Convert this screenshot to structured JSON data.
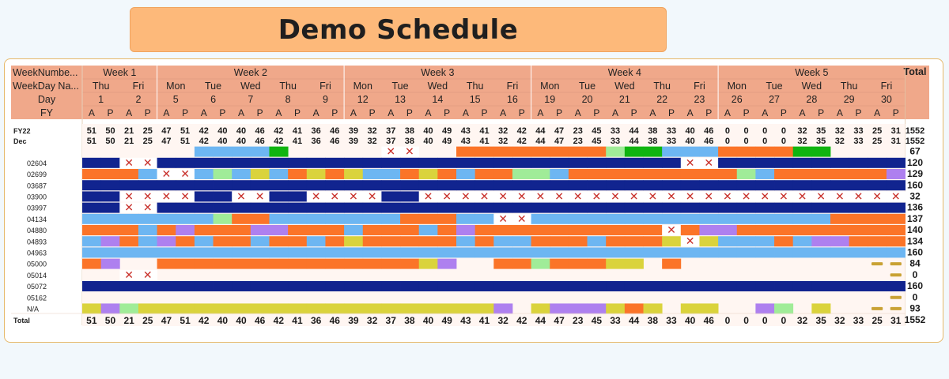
{
  "title": "Demo Schedule",
  "header_labels": {
    "week": "WeekNumbe...",
    "weekday": "WeekDay Na...",
    "day": "Day",
    "fy": "FY",
    "total": "Total"
  },
  "weeks": [
    "Week 1",
    "Week 2",
    "Week 3",
    "Week 4",
    "Week 5"
  ],
  "colors": {
    "header_bg": "#f0a88a",
    "navy": "#11248f",
    "orange": "#fb7428",
    "lightblue": "#6db6f2",
    "green": "#10b410",
    "lightgreen": "#a0ec98",
    "purple": "#ae80ef",
    "yellow": "#dad33c",
    "dash": "#c9a234",
    "x_mark": "#c8302a"
  },
  "chart_data": {
    "type": "heatmap",
    "title": "Demo Schedule",
    "days": [
      {
        "week": "Week 1",
        "weekday": "Thu",
        "day": "1"
      },
      {
        "week": "Week 1",
        "weekday": "Fri",
        "day": "2"
      },
      {
        "week": "Week 2",
        "weekday": "Mon",
        "day": "5"
      },
      {
        "week": "Week 2",
        "weekday": "Tue",
        "day": "6"
      },
      {
        "week": "Week 2",
        "weekday": "Wed",
        "day": "7"
      },
      {
        "week": "Week 2",
        "weekday": "Thu",
        "day": "8"
      },
      {
        "week": "Week 2",
        "weekday": "Fri",
        "day": "9"
      },
      {
        "week": "Week 3",
        "weekday": "Mon",
        "day": "12"
      },
      {
        "week": "Week 3",
        "weekday": "Tue",
        "day": "13"
      },
      {
        "week": "Week 3",
        "weekday": "Wed",
        "day": "14"
      },
      {
        "week": "Week 3",
        "weekday": "Thu",
        "day": "15"
      },
      {
        "week": "Week 3",
        "weekday": "Fri",
        "day": "16"
      },
      {
        "week": "Week 4",
        "weekday": "Mon",
        "day": "19"
      },
      {
        "week": "Week 4",
        "weekday": "Tue",
        "day": "20"
      },
      {
        "week": "Week 4",
        "weekday": "Wed",
        "day": "21"
      },
      {
        "week": "Week 4",
        "weekday": "Thu",
        "day": "22"
      },
      {
        "week": "Week 4",
        "weekday": "Fri",
        "day": "23"
      },
      {
        "week": "Week 5",
        "weekday": "Mon",
        "day": "26"
      },
      {
        "week": "Week 5",
        "weekday": "Tue",
        "day": "27"
      },
      {
        "week": "Week 5",
        "weekday": "Wed",
        "day": "28"
      },
      {
        "week": "Week 5",
        "weekday": "Thu",
        "day": "29"
      },
      {
        "week": "Week 5",
        "weekday": "Fri",
        "day": "30"
      }
    ],
    "fy_labels": [
      "A",
      "P"
    ],
    "fy_row": {
      "label": "FY22",
      "values": [
        51,
        50,
        21,
        25,
        47,
        51,
        42,
        40,
        40,
        46,
        42,
        41,
        36,
        46,
        39,
        32,
        37,
        38,
        40,
        49,
        43,
        41,
        32,
        42,
        44,
        47,
        23,
        45,
        33,
        44,
        38,
        33,
        40,
        46,
        0,
        0,
        0,
        0,
        32,
        35,
        32,
        33,
        25,
        31
      ],
      "total": "1552"
    },
    "dec_row": {
      "label": "Dec",
      "values": [
        51,
        50,
        21,
        25,
        47,
        51,
        42,
        40,
        40,
        46,
        42,
        41,
        36,
        46,
        39,
        32,
        37,
        38,
        40,
        49,
        43,
        41,
        32,
        42,
        44,
        47,
        23,
        45,
        33,
        44,
        38,
        33,
        40,
        46,
        0,
        0,
        0,
        0,
        32,
        35,
        32,
        33,
        25,
        31
      ],
      "total": "1552"
    },
    "legend_codes": {
      "N": "navy",
      "O": "orange",
      "L": "lightblue",
      "G": "green",
      "g": "lightgreen",
      "P": "purple",
      "Y": "yellow",
      "X": "unavailable",
      "D": "off",
      ".": "empty"
    },
    "rows": [
      {
        "label": "",
        "total": "67",
        "cells": "......LLLLG.....XX..OOOOOOOOgGGLLLOOOOGG.................DDDDXX..XX"
      },
      {
        "label": "02604",
        "total": "120",
        "cells": "NNXXNNNNNNNNNNNNNNNNNNNNNNNNNNNNXXNNNNNNNNNNNDDDDXXXXXXXXXX"
      },
      {
        "label": "02699",
        "total": "129",
        "cells": "OOOLXXLgLYLOYOYLLOYOLOOggLOOOOOOOOOgLOOOOOOPLDDDDPOPOPLOO"
      },
      {
        "label": "03687",
        "total": "160",
        "cells": "NNNNNNNNNNNNNNNNNNNNNNNNNNNNNNNNNNNNNNNNNNNNNNDDDDNNNNNN"
      },
      {
        "label": "03900",
        "total": "32",
        "cells": "NNXXXXNNXXNNXXXXNNXXXXXXXXXXXXXXXXXXXXXXXXXXXXDDDDXXXXXX"
      },
      {
        "label": "03997",
        "total": "136",
        "cells": "NNXXNNNNNNNNNNNNNNNNNNNNNNNNNNNNNNNNNNNNNNNNNNDDDDXXNNXX"
      },
      {
        "label": "04134",
        "total": "137",
        "cells": "LLLLLLLgOOLLLLLLLOOOLLXXLLLLLLLLLLLLLLLLOOOODDDDOOLLOO"
      },
      {
        "label": "04880",
        "total": "140",
        "cells": "OOOLOPOOOPPOOOLOOOLOPOOOOOOOOOOXOPPOOOOOOOOODDDDOOOOLO"
      },
      {
        "label": "04893",
        "total": "134",
        "cells": "LPOLPOLOOLOOLOYOOOOOLOLLOOOLOOOYXYLLLOLPPOOODDDDOOOLYY"
      },
      {
        "label": "04963",
        "total": "160",
        "cells": "LLLLLLLLLLLLLLLLLLLLLLLLLLLLLLLLLLLLLLLLLLLLDDDDLLLLLL"
      },
      {
        "label": "05000",
        "total": "84",
        "cells": "OP..OOOOOOOOOOOOOOYP..OOgOOOYY.O..........DDDD......"
      },
      {
        "label": "05014",
        "total": "0",
        "cells": "..XX.......................................DDDD......"
      },
      {
        "label": "05072",
        "total": "160",
        "cells": "NNNNNNNNNNNNNNNNNNNNNNNNNNNNNNNNNNNNNNNNNNNNDDDDNNNNNN"
      },
      {
        "label": "05162",
        "total": "0",
        "cells": "...........................................DDDD......"
      },
      {
        "label": "N/A",
        "total": "93",
        "cells": "YPgYYYYYYYYYYYYYYYYYYYP.YPPPYOY.YY..Pg.Y..DDDDXXXXXX"
      }
    ],
    "total_row": {
      "label": "Total",
      "values": [
        51,
        50,
        21,
        25,
        47,
        51,
        42,
        40,
        40,
        46,
        42,
        41,
        36,
        46,
        39,
        32,
        37,
        38,
        40,
        49,
        43,
        41,
        32,
        42,
        44,
        47,
        23,
        45,
        33,
        44,
        38,
        33,
        40,
        46,
        0,
        0,
        0,
        0,
        32,
        35,
        32,
        33,
        25,
        31
      ],
      "total": "1552"
    }
  }
}
